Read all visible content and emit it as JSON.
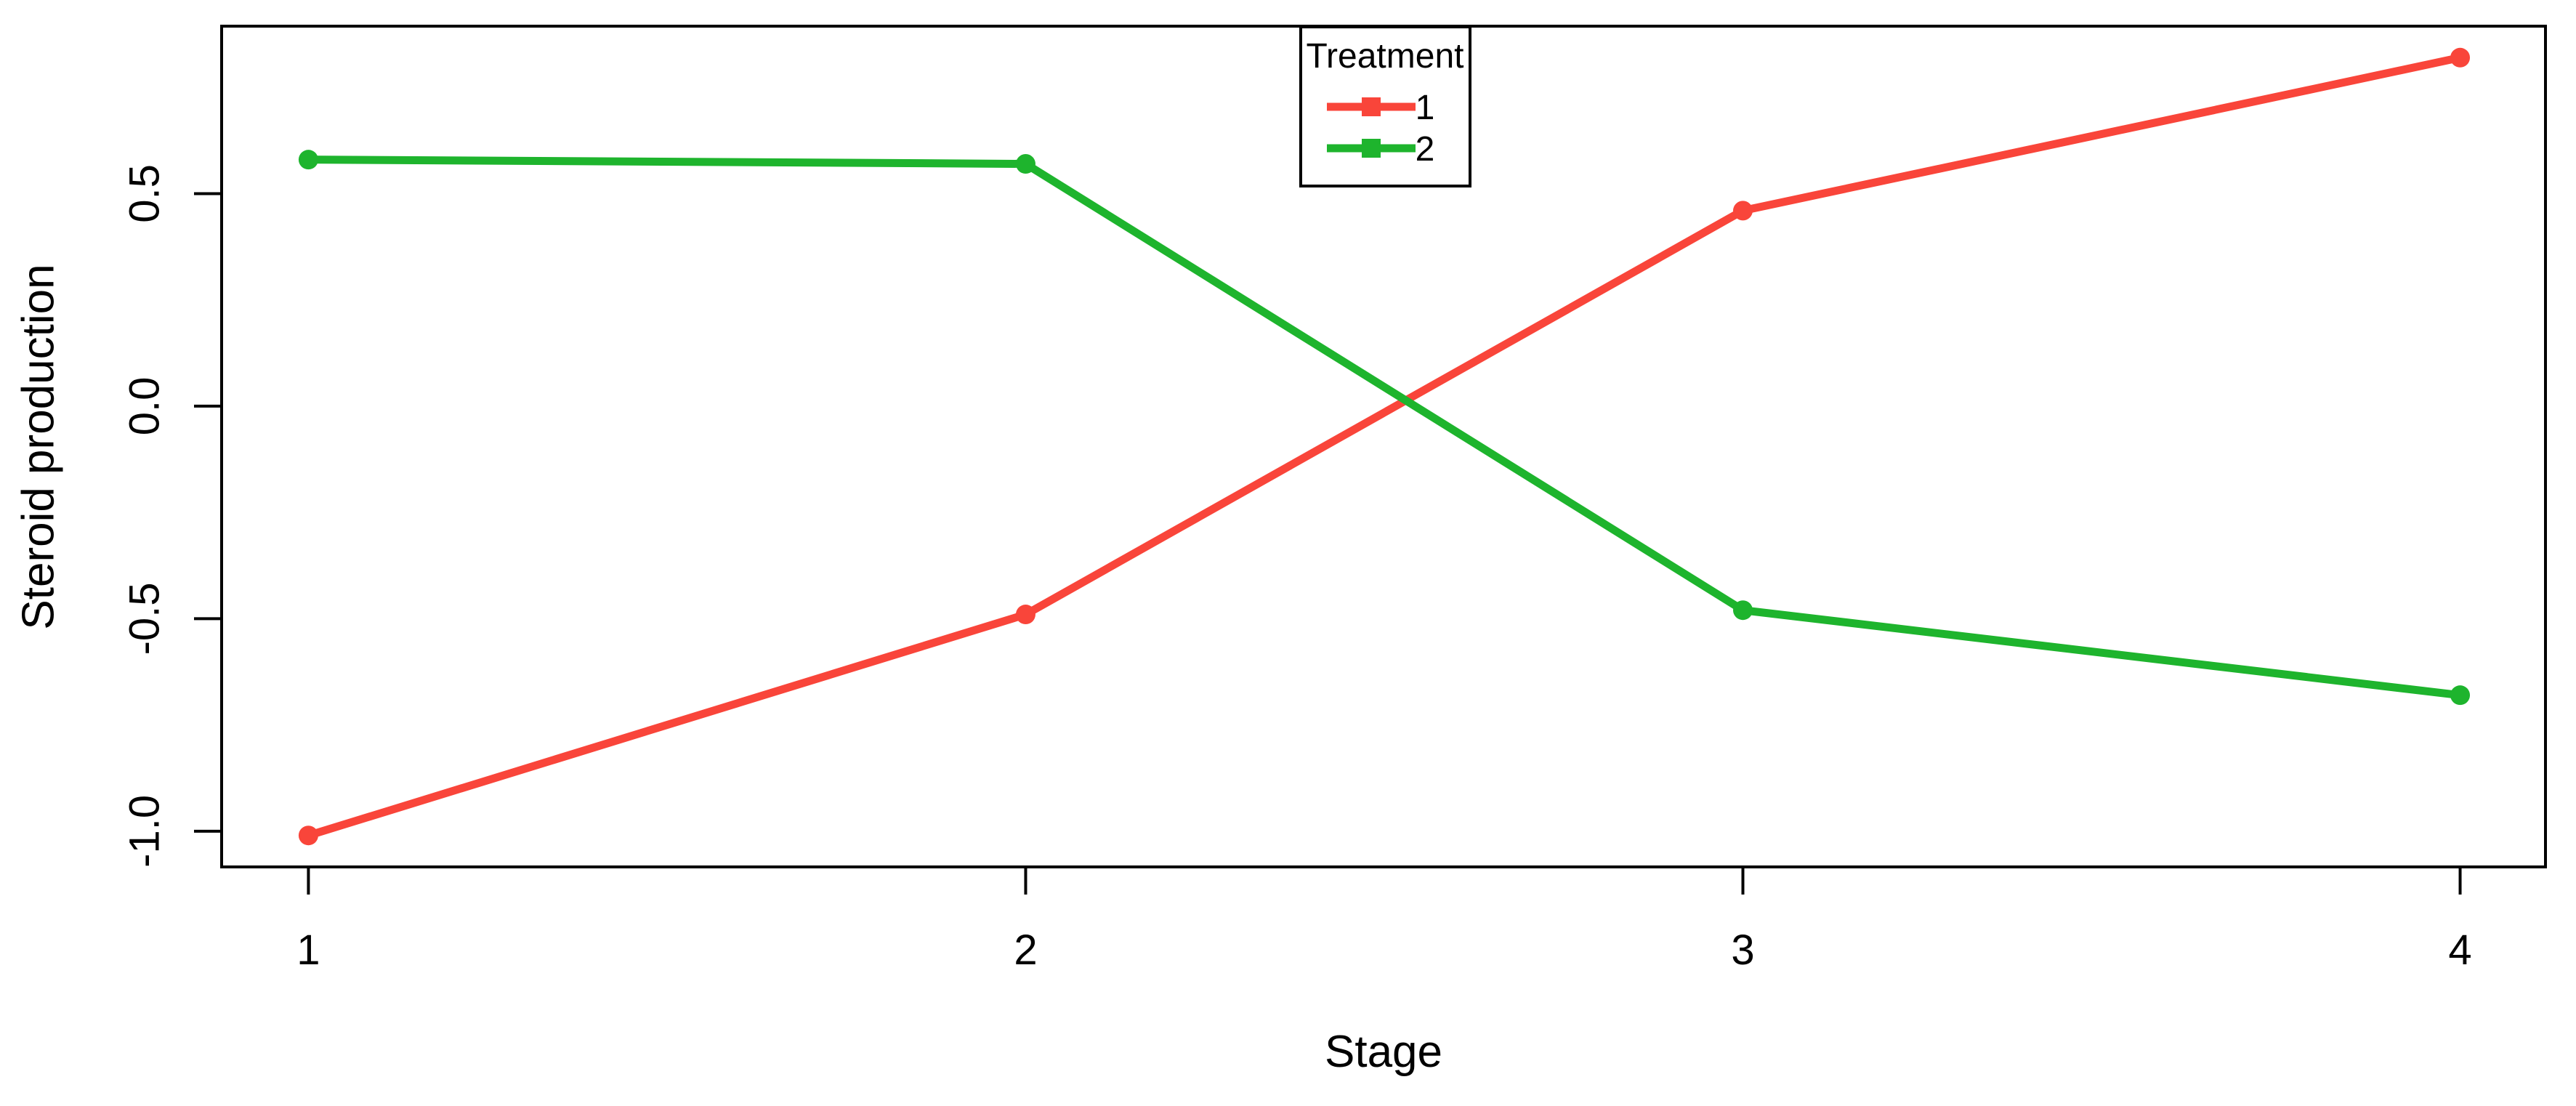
{
  "figure": {
    "background": "#ffffff",
    "axis_color": "#000000",
    "text_color": "#000000"
  },
  "chart_data": {
    "type": "line",
    "title": "",
    "xlabel": "Stage",
    "ylabel": "Steroid production",
    "grid": "off",
    "xlim": [
      0.879,
      4.119
    ],
    "ylim": [
      -1.084,
      0.894
    ],
    "categories": [
      1,
      2,
      3,
      4
    ],
    "xticks": [
      {
        "value": 1,
        "label": "1"
      },
      {
        "value": 2,
        "label": "2"
      },
      {
        "value": 3,
        "label": "3"
      },
      {
        "value": 4,
        "label": "4"
      }
    ],
    "yticks": [
      {
        "value": -1.0,
        "label": "-1.0"
      },
      {
        "value": -0.5,
        "label": "-0.5"
      },
      {
        "value": 0.0,
        "label": "0.0"
      },
      {
        "value": 0.5,
        "label": "0.5"
      }
    ],
    "legend": {
      "title": "Treatment",
      "position": "top-center-inside"
    },
    "series": [
      {
        "name": "1",
        "color": "#F9453A",
        "marker": "circle",
        "values": [
          -1.01,
          -0.49,
          0.46,
          0.82
        ]
      },
      {
        "name": "2",
        "color": "#1EB42D",
        "marker": "circle",
        "values": [
          0.58,
          0.57,
          -0.48,
          -0.68
        ]
      }
    ]
  }
}
